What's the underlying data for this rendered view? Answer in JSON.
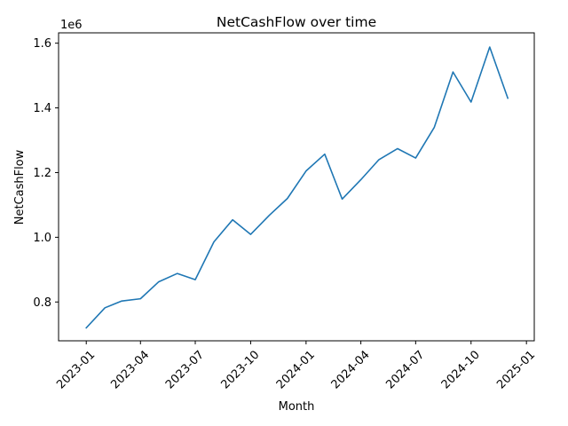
{
  "chart_data": {
    "type": "line",
    "title": "NetCashFlow over time",
    "xlabel": "Month",
    "ylabel": "NetCashFlow",
    "y_offset_label": "1e6",
    "y_scale_factor": 1000000,
    "xlim": [
      "2022-11-16",
      "2025-01-14"
    ],
    "ylim": [
      680000,
      1632000
    ],
    "x_ticks": [
      "2023-01",
      "2023-04",
      "2023-07",
      "2023-10",
      "2024-01",
      "2024-04",
      "2024-07",
      "2024-10",
      "2025-01"
    ],
    "y_ticks": [
      {
        "value": 800000,
        "label": "0.8"
      },
      {
        "value": 1000000,
        "label": "1.0"
      },
      {
        "value": 1200000,
        "label": "1.2"
      },
      {
        "value": 1400000,
        "label": "1.4"
      },
      {
        "value": 1600000,
        "label": "1.6"
      }
    ],
    "grid": false,
    "legend": "none",
    "line_color": "#1f77b4",
    "series": [
      {
        "x": [
          "2023-01",
          "2023-02",
          "2023-03",
          "2023-04",
          "2023-05",
          "2023-06",
          "2023-07",
          "2023-08",
          "2023-09",
          "2023-10",
          "2023-11",
          "2023-12",
          "2024-01",
          "2024-02",
          "2024-03",
          "2024-04",
          "2024-05",
          "2024-06",
          "2024-07",
          "2024-08",
          "2024-09",
          "2024-10",
          "2024-11",
          "2024-12"
        ],
        "values": [
          720000,
          782000,
          803000,
          810000,
          862000,
          888000,
          869000,
          986000,
          1054000,
          1009000,
          1068000,
          1120000,
          1205000,
          1257000,
          1118000,
          1178000,
          1240000,
          1274000,
          1245000,
          1340000,
          1511000,
          1418000,
          1588000,
          1430000
        ]
      }
    ]
  }
}
